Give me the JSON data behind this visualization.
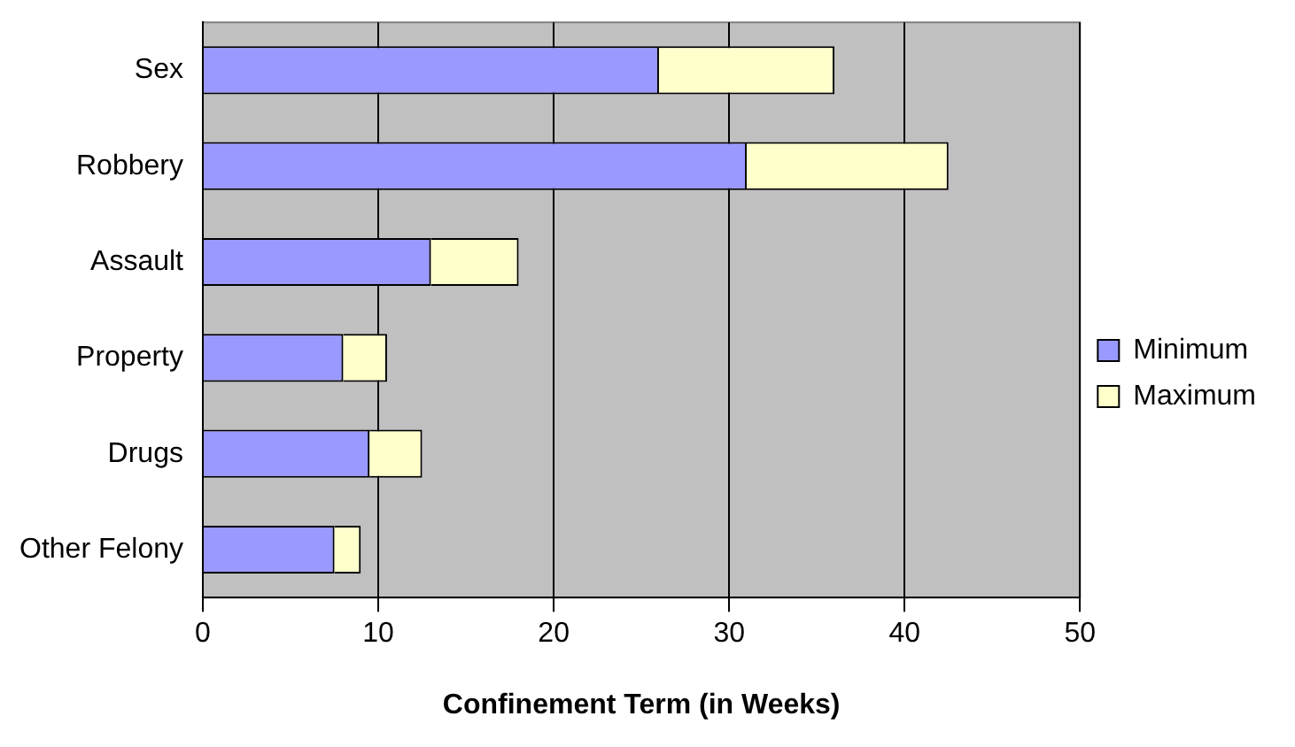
{
  "chart_data": {
    "type": "bar",
    "orientation": "horizontal",
    "stacked": true,
    "xlabel": "Confinement Term (in Weeks)",
    "categories": [
      "Sex",
      "Robbery",
      "Assault",
      "Property",
      "Drugs",
      "Other Felony"
    ],
    "series": [
      {
        "name": "Minimum",
        "color": "#9999ff",
        "values": [
          26,
          31,
          13,
          8,
          9.5,
          7.5
        ]
      },
      {
        "name": "Maximum",
        "color": "#ffffcc",
        "values": [
          10,
          11.5,
          5,
          2.5,
          3,
          1.5
        ]
      }
    ],
    "xlim": [
      0,
      50
    ],
    "xticks": [
      0,
      10,
      20,
      30,
      40,
      50
    ],
    "grid": "x",
    "legend": "right"
  }
}
